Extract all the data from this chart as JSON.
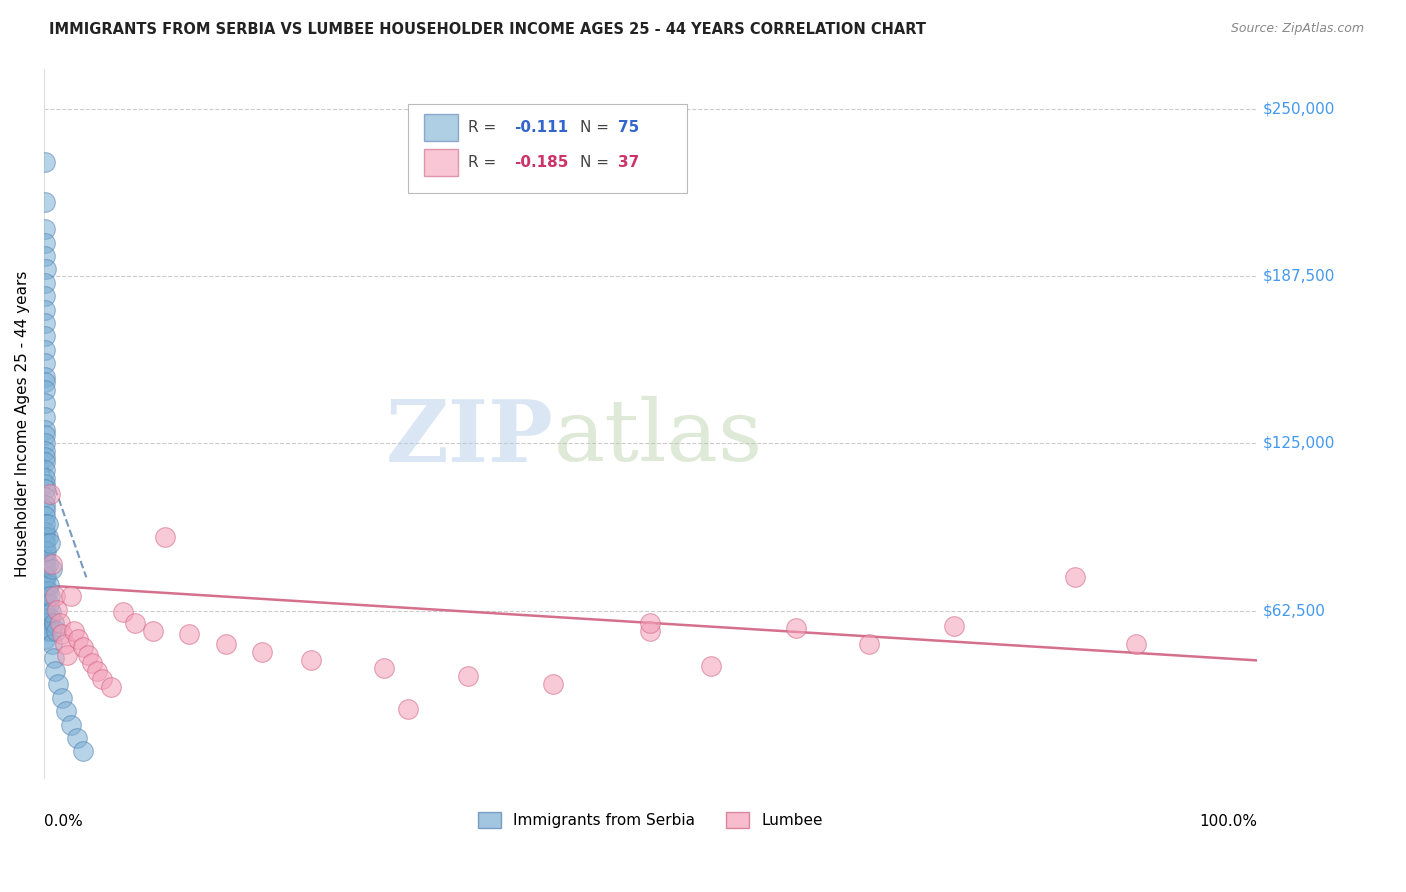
{
  "title": "IMMIGRANTS FROM SERBIA VS LUMBEE HOUSEHOLDER INCOME AGES 25 - 44 YEARS CORRELATION CHART",
  "source": "Source: ZipAtlas.com",
  "ylabel": "Householder Income Ages 25 - 44 years",
  "ylim": [
    0,
    265000
  ],
  "xlim": [
    0.0,
    1.0
  ],
  "serbia_color": "#7bafd4",
  "serbia_edge_color": "#5580b0",
  "lumbee_color": "#f4a0b8",
  "lumbee_edge_color": "#d06080",
  "serbia_R": "-0.111",
  "serbia_N": "75",
  "lumbee_R": "-0.185",
  "lumbee_N": "37",
  "watermark_zip": "ZIP",
  "watermark_atlas": "atlas",
  "ytick_vals": [
    62500,
    125000,
    187500,
    250000
  ],
  "ytick_labels": [
    "$62,500",
    "$125,000",
    "$187,500",
    "$250,000"
  ],
  "serbia_x": [
    0.001,
    0.001,
    0.0012,
    0.0008,
    0.001,
    0.0015,
    0.001,
    0.0009,
    0.0011,
    0.001,
    0.0013,
    0.0008,
    0.001,
    0.0012,
    0.0007,
    0.001,
    0.0009,
    0.0011,
    0.0008,
    0.001,
    0.0012,
    0.001,
    0.0013,
    0.0009,
    0.001,
    0.0011,
    0.001,
    0.0008,
    0.0012,
    0.001,
    0.0009,
    0.0011,
    0.0013,
    0.001,
    0.0008,
    0.001,
    0.0012,
    0.0009,
    0.001,
    0.0011,
    0.0008,
    0.001,
    0.0013,
    0.001,
    0.0009,
    0.001,
    0.0012,
    0.0008,
    0.001,
    0.0011,
    0.002,
    0.003,
    0.004,
    0.005,
    0.006,
    0.007,
    0.008,
    0.009,
    0.012,
    0.015,
    0.018,
    0.022,
    0.027,
    0.032,
    0.003,
    0.004,
    0.005,
    0.002,
    0.003,
    0.006,
    0.008,
    0.01,
    0.003,
    0.005,
    0.007
  ],
  "serbia_y": [
    230000,
    215000,
    205000,
    200000,
    195000,
    190000,
    185000,
    180000,
    175000,
    170000,
    165000,
    160000,
    155000,
    150000,
    148000,
    145000,
    140000,
    135000,
    130000,
    128000,
    125000,
    122000,
    120000,
    118000,
    115000,
    112000,
    110000,
    108000,
    105000,
    102000,
    100000,
    98000,
    95000,
    92000,
    90000,
    88000,
    85000,
    82000,
    80000,
    78000,
    75000,
    72000,
    70000,
    68000,
    65000,
    62000,
    60000,
    58000,
    55000,
    52000,
    75000,
    70000,
    65000,
    60000,
    55000,
    50000,
    45000,
    40000,
    35000,
    30000,
    25000,
    20000,
    15000,
    10000,
    80000,
    72000,
    68000,
    85000,
    90000,
    62000,
    58000,
    55000,
    95000,
    88000,
    78000
  ],
  "lumbee_x": [
    0.005,
    0.007,
    0.009,
    0.011,
    0.013,
    0.015,
    0.017,
    0.019,
    0.022,
    0.025,
    0.028,
    0.032,
    0.036,
    0.04,
    0.044,
    0.048,
    0.055,
    0.065,
    0.075,
    0.09,
    0.1,
    0.12,
    0.15,
    0.18,
    0.22,
    0.28,
    0.35,
    0.42,
    0.5,
    0.55,
    0.62,
    0.68,
    0.75,
    0.85,
    0.9,
    0.5,
    0.3
  ],
  "lumbee_y": [
    106000,
    80000,
    68000,
    63000,
    58000,
    54000,
    50000,
    46000,
    68000,
    55000,
    52000,
    49000,
    46000,
    43000,
    40000,
    37000,
    34000,
    62000,
    58000,
    55000,
    90000,
    54000,
    50000,
    47000,
    44000,
    41000,
    38000,
    35000,
    55000,
    42000,
    56000,
    50000,
    57000,
    75000,
    50000,
    58000,
    26000
  ],
  "serbia_trend_x": [
    0.0,
    0.035
  ],
  "serbia_trend_y": [
    120000,
    75000
  ],
  "lumbee_trend_x": [
    0.0,
    1.0
  ],
  "lumbee_trend_y": [
    72000,
    44000
  ]
}
